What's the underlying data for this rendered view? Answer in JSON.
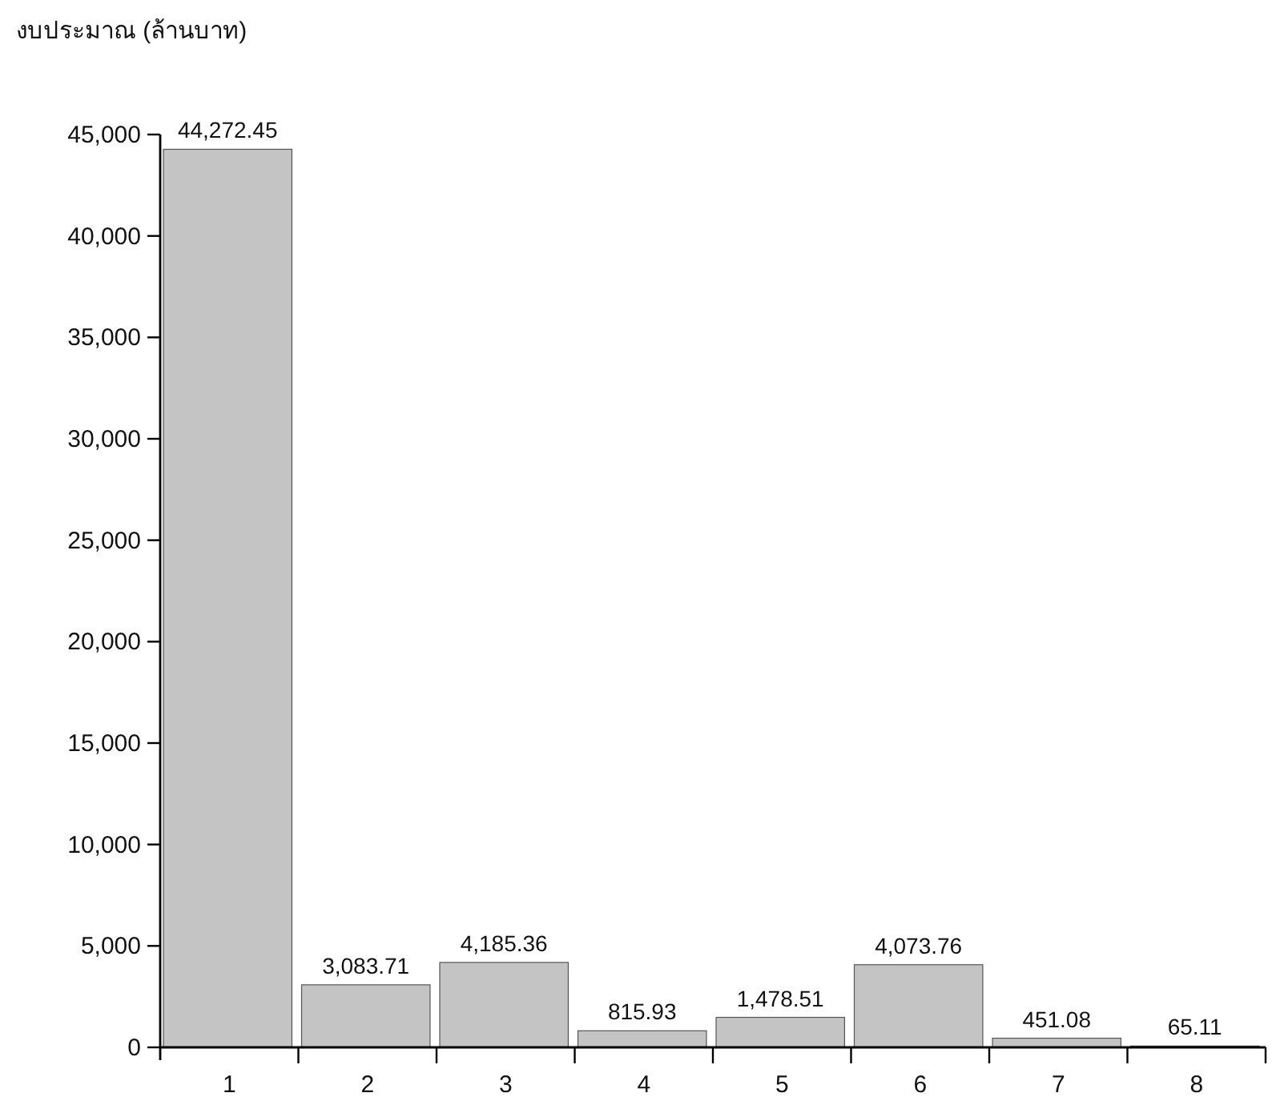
{
  "chart_data": {
    "type": "bar",
    "ylabel": "งบประมาณ (ล้านบาท)",
    "categories": [
      "1",
      "2",
      "3",
      "4",
      "5",
      "6",
      "7",
      "8"
    ],
    "values": [
      44272.45,
      3083.71,
      4185.36,
      815.93,
      1478.51,
      4073.76,
      451.08,
      65.11
    ],
    "value_labels": [
      "44,272.45",
      "3,083.71",
      "4,185.36",
      "815.93",
      "1,478.51",
      "4,073.76",
      "451.08",
      "65.11"
    ],
    "color": "#c4c4c4",
    "ylim": [
      0,
      45000
    ],
    "yticks": [
      {
        "value": 0,
        "label": "0"
      },
      {
        "value": 5000,
        "label": "5,000"
      },
      {
        "value": 10000,
        "label": "10,000"
      },
      {
        "value": 15000,
        "label": "15,000"
      },
      {
        "value": 20000,
        "label": "20,000"
      },
      {
        "value": 25000,
        "label": "25,000"
      },
      {
        "value": 30000,
        "label": "30,000"
      },
      {
        "value": 35000,
        "label": "35,000"
      },
      {
        "value": 40000,
        "label": "40,000"
      },
      {
        "value": 45000,
        "label": "45,000"
      }
    ],
    "grid": false
  }
}
